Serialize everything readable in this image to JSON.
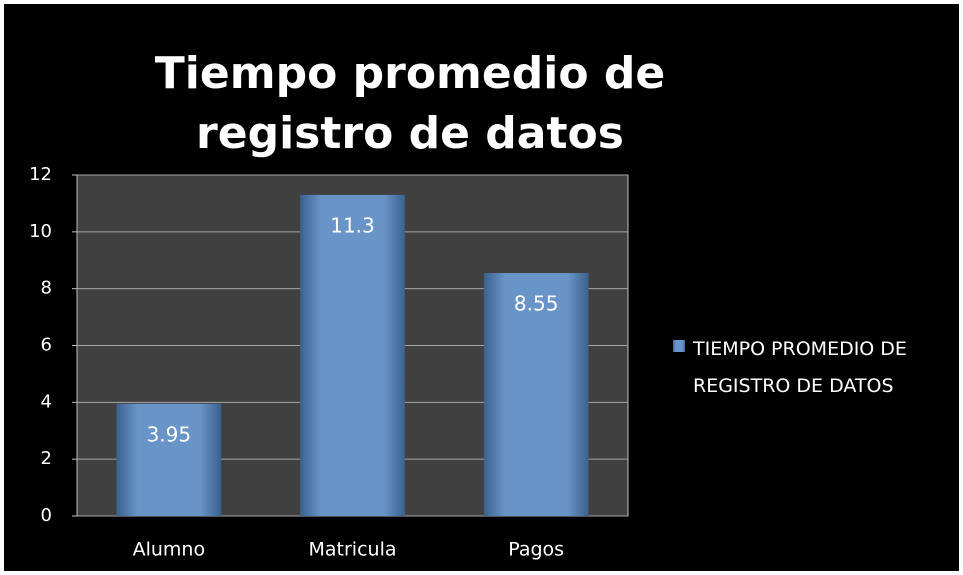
{
  "chart_data": {
    "type": "bar",
    "title": "Tiempo promedio de registro de datos",
    "categories": [
      "Alumno",
      "Matricula",
      "Pagos"
    ],
    "series": [
      {
        "name": "TIEMPO PROMEDIO DE REGISTRO DE DATOS",
        "color": "#4f81bd",
        "values": [
          3.95,
          11.3,
          8.55
        ]
      }
    ],
    "ylim": [
      0,
      12
    ],
    "yticks": [
      0,
      2,
      4,
      6,
      8,
      10,
      12
    ],
    "grid": true,
    "legend": "right"
  }
}
